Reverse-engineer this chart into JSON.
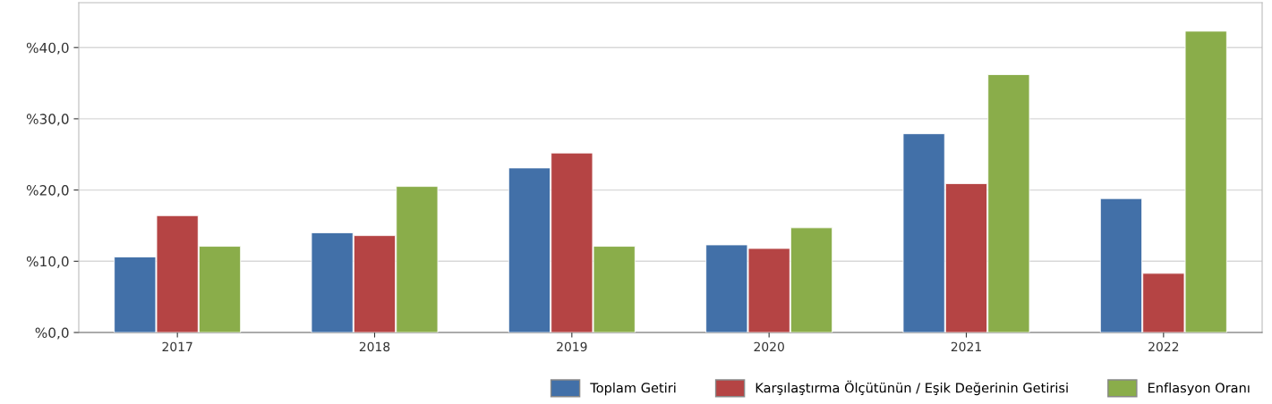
{
  "chart_data": {
    "type": "bar",
    "categories": [
      "2017",
      "2018",
      "2019",
      "2020",
      "2021",
      "2022"
    ],
    "series": [
      {
        "name": "Toplam Getiri",
        "color": "#4270a8",
        "values": [
          10.6,
          14.0,
          23.1,
          12.3,
          27.9,
          18.8
        ]
      },
      {
        "name": "Karşılaştırma Ölçütünün / Eşik Değerinin Getirisi",
        "color": "#b54444",
        "values": [
          16.4,
          13.6,
          25.2,
          11.8,
          20.9,
          8.3
        ]
      },
      {
        "name": "Enflasyon Oranı",
        "color": "#8aad4a",
        "values": [
          12.1,
          20.5,
          12.1,
          14.7,
          36.2,
          42.3
        ]
      }
    ],
    "ylim": [
      0,
      46.3
    ],
    "yticks": [
      {
        "value": 0,
        "label": "%0,0"
      },
      {
        "value": 10,
        "label": "%10,0"
      },
      {
        "value": 20,
        "label": "%20,0"
      },
      {
        "value": 30,
        "label": "%30,0"
      },
      {
        "value": 40,
        "label": "%40,0"
      }
    ],
    "grid": "y",
    "legend": "bottom right"
  }
}
